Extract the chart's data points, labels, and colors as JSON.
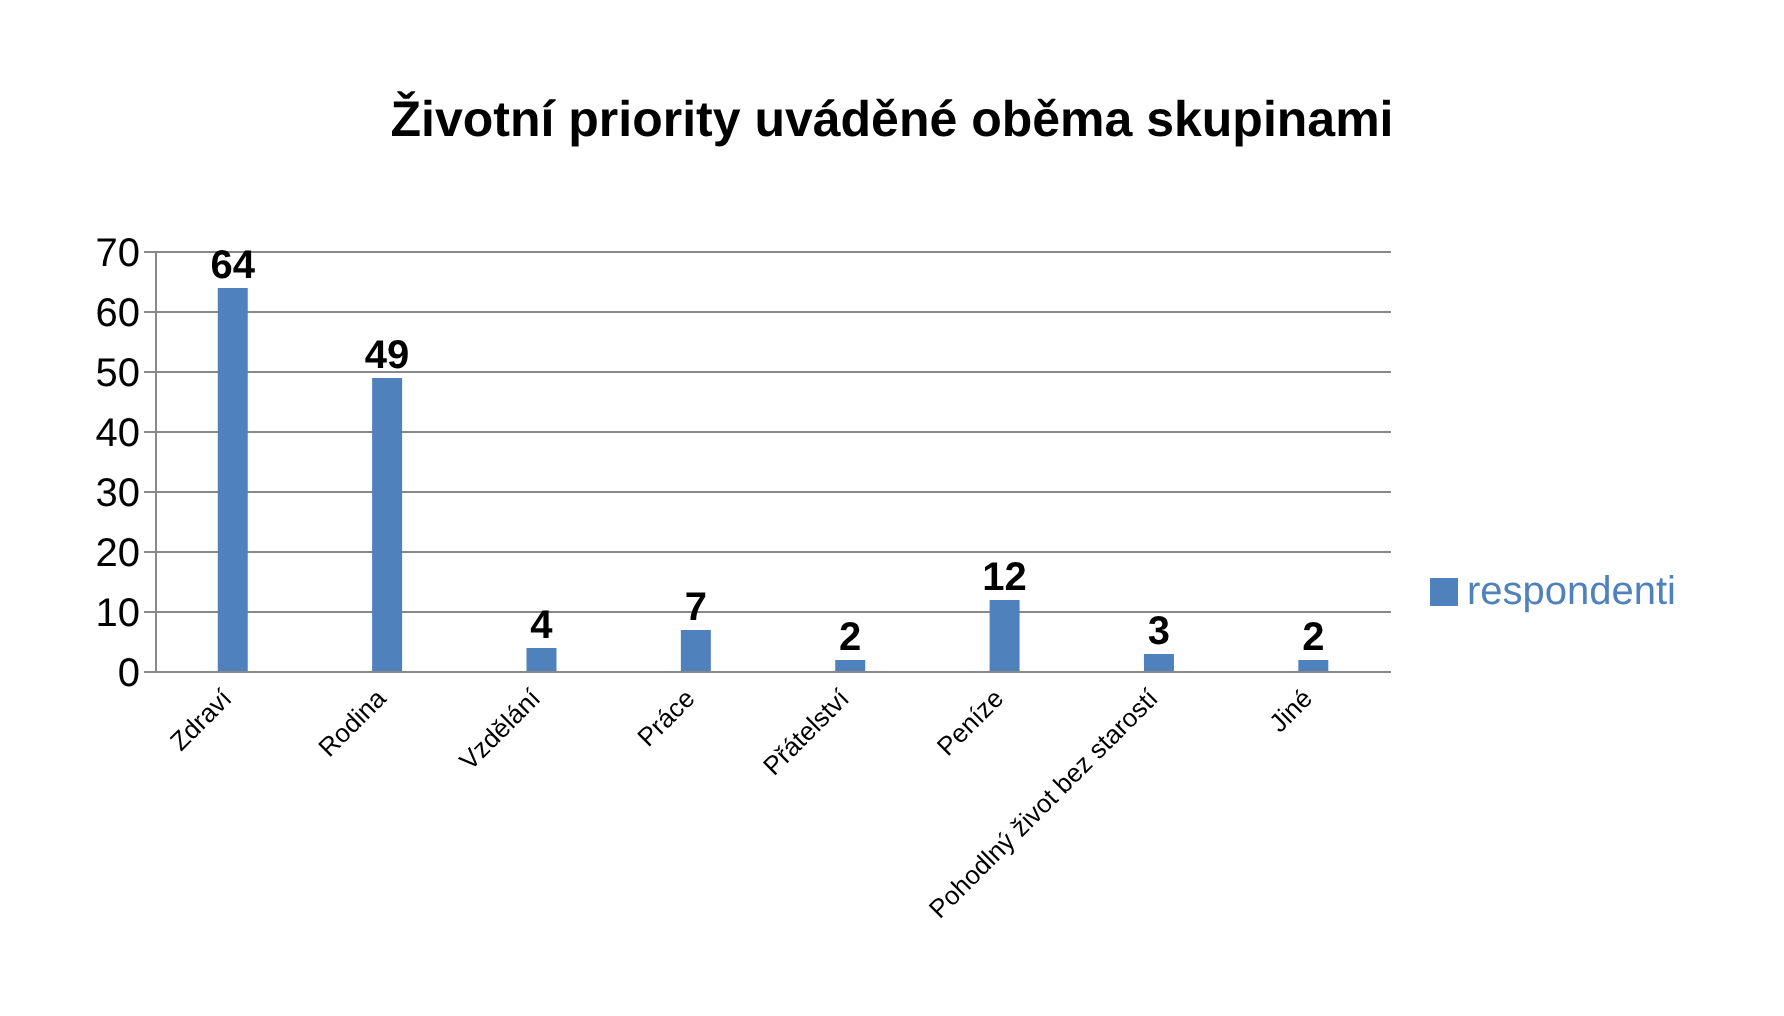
{
  "chart_data": {
    "type": "bar",
    "title": "Životní priority uváděné oběma skupinami",
    "categories": [
      "Zdraví",
      "Rodina",
      "Vzdělání",
      "Práce",
      "Přátelství",
      "Peníze",
      "Pohodlný život bez starostí",
      "Jiné"
    ],
    "series": [
      {
        "name": "respondenti",
        "color": "#4f81bd",
        "values": [
          64,
          49,
          4,
          7,
          2,
          12,
          3,
          2
        ]
      }
    ],
    "ylim": [
      0,
      70
    ],
    "yticks": [
      0,
      10,
      20,
      30,
      40,
      50,
      60,
      70
    ],
    "grid": "y",
    "legend": "right",
    "data_labels": true
  }
}
